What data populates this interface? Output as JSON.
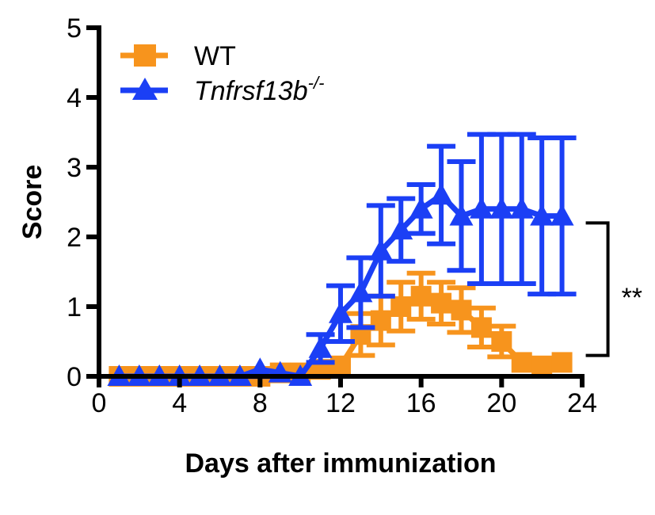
{
  "chart_data": {
    "type": "line",
    "title": "",
    "xlabel": "Days after immunization",
    "ylabel": "Score",
    "xlim": [
      0,
      24
    ],
    "ylim": [
      0,
      5
    ],
    "xticks": [
      0,
      4,
      8,
      12,
      16,
      20,
      24
    ],
    "yticks": [
      0,
      1,
      2,
      3,
      4,
      5
    ],
    "grid": false,
    "legend_position": "top-left",
    "series": [
      {
        "name": "WT",
        "color": "#f7941d",
        "marker": "square",
        "x": [
          1,
          2,
          3,
          4,
          5,
          6,
          7,
          8,
          9,
          10,
          11,
          12,
          13,
          14,
          15,
          16,
          17,
          18,
          19,
          20,
          21,
          22,
          23
        ],
        "y": [
          0,
          0,
          0,
          0,
          0,
          0,
          0,
          0,
          0.05,
          0.05,
          0.1,
          0.15,
          0.6,
          0.8,
          1.0,
          1.15,
          1.05,
          0.95,
          0.7,
          0.5,
          0.2,
          0.15,
          0.2
        ],
        "err": [
          0,
          0,
          0,
          0,
          0,
          0,
          0,
          0,
          0,
          0,
          0,
          0,
          0.3,
          0.35,
          0.35,
          0.33,
          0.3,
          0.32,
          0.28,
          0.22,
          0,
          0,
          0
        ]
      },
      {
        "name": "Tnfrsf13b",
        "name_sup": "-/-",
        "color": "#1b3ff5",
        "marker": "triangle",
        "x": [
          1,
          2,
          3,
          4,
          5,
          6,
          7,
          8,
          9,
          10,
          11,
          12,
          13,
          14,
          15,
          16,
          17,
          18,
          19,
          20,
          21,
          22,
          23
        ],
        "y": [
          0,
          0,
          0,
          0,
          0,
          0,
          0,
          0.1,
          0.05,
          0,
          0.4,
          0.9,
          1.2,
          1.8,
          2.1,
          2.4,
          2.6,
          2.3,
          2.4,
          2.4,
          2.4,
          2.3,
          2.3
        ],
        "err": [
          0,
          0,
          0,
          0,
          0,
          0,
          0,
          0,
          0,
          0,
          0.2,
          0.4,
          0.5,
          0.65,
          0.45,
          0.35,
          0.7,
          0.78,
          1.07,
          1.07,
          1.07,
          1.12,
          1.12
        ]
      }
    ],
    "annotations": [
      {
        "type": "significance-bracket",
        "text": "**",
        "x": 23,
        "y_top": 2.2,
        "y_bottom": 0.3
      }
    ]
  }
}
